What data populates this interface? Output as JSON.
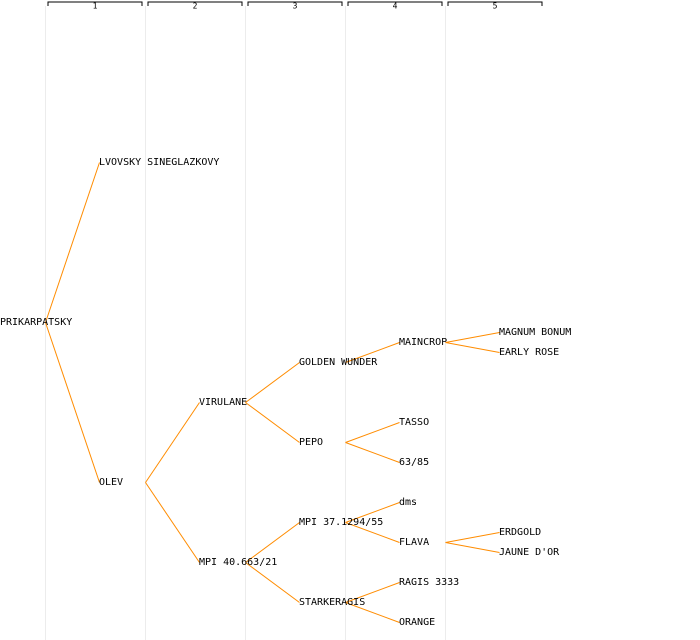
{
  "columns": [
    "1",
    "2",
    "3",
    "4",
    "5"
  ],
  "nodes": [
    {
      "label": "PRIKARPATSKY",
      "gen": 0,
      "parent": null
    },
    {
      "label": "LVOVSKY SINEGLAZKOVY",
      "gen": 1,
      "parent": 0
    },
    {
      "label": "OLEV",
      "gen": 1,
      "parent": 0
    },
    {
      "label": "VIRULANE",
      "gen": 2,
      "parent": 2
    },
    {
      "label": "MPI 40.663/21",
      "gen": 2,
      "parent": 2
    },
    {
      "label": "GOLDEN WUNDER",
      "gen": 3,
      "parent": 3
    },
    {
      "label": "PEPO",
      "gen": 3,
      "parent": 3,
      "color": "#0000cc"
    },
    {
      "label": "MPI 37.1294/55",
      "gen": 3,
      "parent": 4
    },
    {
      "label": "STARKERAGIS",
      "gen": 3,
      "parent": 4
    },
    {
      "label": "MAINCROP",
      "gen": 4,
      "parent": 5
    },
    {
      "label": "TASSO",
      "gen": 4,
      "parent": 6
    },
    {
      "label": "63/85",
      "gen": 4,
      "parent": 6
    },
    {
      "label": "dms",
      "gen": 4,
      "parent": 7
    },
    {
      "label": "FLAVA",
      "gen": 4,
      "parent": 7
    },
    {
      "label": "RAGIS 3333",
      "gen": 4,
      "parent": 8
    },
    {
      "label": "ORANGE",
      "gen": 4,
      "parent": 8
    },
    {
      "label": "MAGNUM BONUM",
      "gen": 5,
      "parent": 9
    },
    {
      "label": "EARLY ROSE",
      "gen": 5,
      "parent": 9
    },
    {
      "label": "ERDGOLD",
      "gen": 5,
      "parent": 13
    },
    {
      "label": "JAUNE D'OR",
      "gen": 5,
      "parent": 13
    }
  ]
}
